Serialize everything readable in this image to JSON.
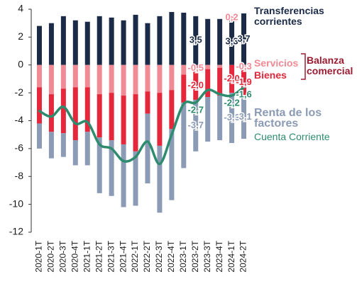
{
  "chart_data": {
    "type": "bar",
    "categories": [
      "2020-1T",
      "2020-2T",
      "2020-3T",
      "2020-4T",
      "2021-1T",
      "2021-2T",
      "2021-3T",
      "2021-4T",
      "2022-1T",
      "2022-2T",
      "2022-3T",
      "2022-4T",
      "2023-1T",
      "2023-2T",
      "2023-3T",
      "2023-4T",
      "2024-1T",
      "2024-2T"
    ],
    "ylim": [
      -12,
      4
    ],
    "yticks": [
      -12,
      -10,
      -8,
      -6,
      -4,
      -2,
      0,
      2,
      4
    ],
    "grid": false,
    "stacked": true,
    "group_label": "Balanza comercial",
    "series": [
      {
        "name": "Transferencias corrientes",
        "type": "bar",
        "color": "#1b2a47",
        "values": [
          2.8,
          3.0,
          3.5,
          3.2,
          3.1,
          3.5,
          3.4,
          3.2,
          3.6,
          3.0,
          3.5,
          3.8,
          3.75,
          3.5,
          3.3,
          3.3,
          3.3,
          3.7
        ],
        "value_labels": [
          null,
          null,
          null,
          null,
          null,
          null,
          null,
          null,
          null,
          null,
          null,
          null,
          null,
          "3,5",
          null,
          null,
          "3,3",
          "3,7"
        ]
      },
      {
        "name": "Servicios",
        "type": "bar",
        "color": "#f08a94",
        "values": [
          -1.6,
          -2.1,
          -1.7,
          -1.6,
          -1.6,
          -2.1,
          -2.0,
          -2.2,
          -2.1,
          -1.9,
          -2.0,
          -1.8,
          -0.7,
          -0.5,
          -0.3,
          -0.2,
          0.2,
          -0.3
        ],
        "value_labels": [
          null,
          null,
          null,
          null,
          null,
          null,
          null,
          null,
          null,
          null,
          null,
          null,
          null,
          "-0,5",
          null,
          null,
          "0,2",
          "-0,3"
        ]
      },
      {
        "name": "Bienes",
        "type": "bar",
        "color": "#e5273b",
        "values": [
          -2.6,
          -2.7,
          -3.2,
          -3.8,
          -3.2,
          -3.1,
          -3.4,
          -3.5,
          -4.1,
          -1.6,
          -3.8,
          -2.8,
          -2.0,
          -2.0,
          -2.0,
          -2.0,
          -2.0,
          -1.9
        ],
        "value_labels": [
          null,
          null,
          null,
          null,
          null,
          null,
          null,
          null,
          null,
          null,
          null,
          null,
          null,
          "-2,0",
          null,
          null,
          "-2,0",
          "-1,9"
        ]
      },
      {
        "name": "Renta de los factores",
        "type": "bar",
        "color": "#8b9bb5",
        "values": [
          -1.8,
          -1.9,
          -1.7,
          -1.8,
          -2.4,
          -4.0,
          -4.0,
          -4.5,
          -3.9,
          -5.0,
          -4.8,
          -5.1,
          -4.7,
          -3.7,
          -3.2,
          -3.2,
          -3.6,
          -3.1
        ],
        "value_labels": [
          null,
          null,
          null,
          null,
          null,
          null,
          null,
          null,
          null,
          null,
          null,
          null,
          null,
          "-3,7",
          null,
          null,
          "-3,6",
          "-3,1"
        ]
      },
      {
        "name": "Cuenta Corriente",
        "type": "line",
        "color": "#2e8b6e",
        "values": [
          -3.3,
          -3.7,
          -3.0,
          -4.2,
          -4.1,
          -5.7,
          -6.0,
          -6.9,
          -6.6,
          -5.5,
          -7.1,
          -5.0,
          -2.8,
          -2.7,
          -1.8,
          -2.1,
          -2.2,
          -1.6
        ],
        "value_labels": [
          null,
          null,
          null,
          null,
          null,
          null,
          null,
          null,
          null,
          null,
          null,
          null,
          null,
          "-2,7",
          null,
          null,
          "-2,2",
          "-1,6"
        ]
      }
    ]
  }
}
